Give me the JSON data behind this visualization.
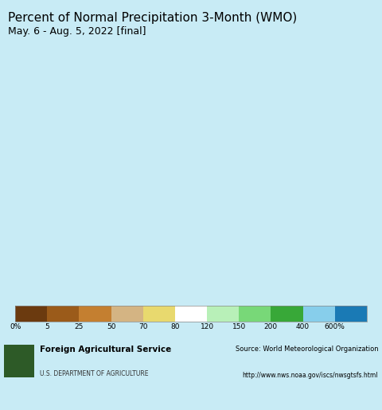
{
  "title": "Percent of Normal Precipitation 3-Month (WMO)",
  "subtitle": "May. 6 - Aug. 5, 2022 [final]",
  "background_color": "#c8ebf5",
  "map_bg": "#c8ebf5",
  "footer_bg": "#e8e8e8",
  "colorbar_labels": [
    "0%",
    "5",
    "25",
    "50",
    "70",
    "80",
    "120",
    "150",
    "200",
    "400",
    "600%"
  ],
  "colorbar_colors": [
    "#6b3a0f",
    "#9b5b1a",
    "#c8832e",
    "#d4b483",
    "#e8d89a",
    "#f5f5c8",
    "#ffffff",
    "#b8edb8",
    "#8cd48c",
    "#4caf4c",
    "#2d8b2d",
    "#87ceeb",
    "#1e7eb5"
  ],
  "colorbar_values": [
    0,
    5,
    25,
    50,
    70,
    80,
    120,
    150,
    200,
    400,
    600
  ],
  "usda_text": "Foreign Agricultural Service",
  "usda_subtext": "U.S. DEPARTMENT OF AGRICULTURE",
  "source_text": "Source: World Meteorological Organization",
  "source_url": "http://www.nws.noaa.gov/iscs/nwsgtsfs.html",
  "title_fontsize": 11,
  "subtitle_fontsize": 9
}
